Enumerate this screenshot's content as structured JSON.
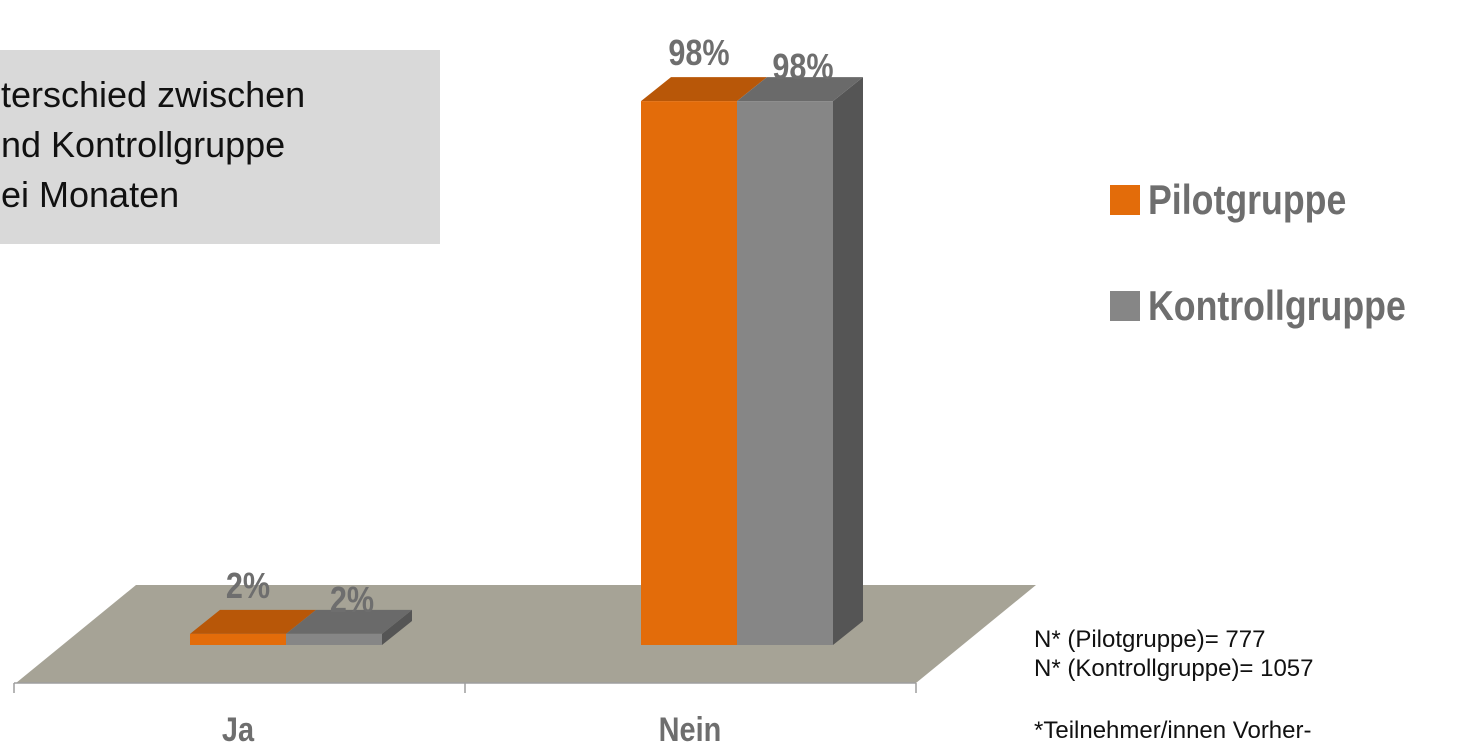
{
  "chart_data": {
    "type": "bar",
    "categories": [
      "Ja",
      "Nein"
    ],
    "series": [
      {
        "name": "Pilotgruppe",
        "values": [
          2,
          98
        ],
        "labels": [
          "2%",
          "98%"
        ]
      },
      {
        "name": "Kontrollgruppe",
        "values": [
          2,
          98
        ],
        "labels": [
          "2%",
          "98%"
        ]
      }
    ],
    "ylim": [
      0,
      100
    ],
    "title": "",
    "xlabel": "",
    "ylabel": "",
    "legend": "right"
  },
  "info_box": {
    "lines": [
      "terschied zwischen",
      "nd Kontrollgruppe",
      "ei Monaten"
    ]
  },
  "legend": [
    {
      "label": "Pilotgruppe"
    },
    {
      "label": "Kontrollgruppe"
    }
  ],
  "notes": {
    "n_pilot": "N* (Pilotgruppe)= 777",
    "n_kontroll": "N* (Kontrollgruppe)= 1057",
    "footnote": "*Teilnehmer/innen Vorher-"
  },
  "colors": {
    "pilot_front": "#e36c0a",
    "pilot_top": "#b85708",
    "kontroll_front": "#868686",
    "kontroll_top": "#6a6a6a",
    "kontroll_side": "#555555",
    "floor": "#a6a396",
    "label": "#6e6e6e"
  }
}
